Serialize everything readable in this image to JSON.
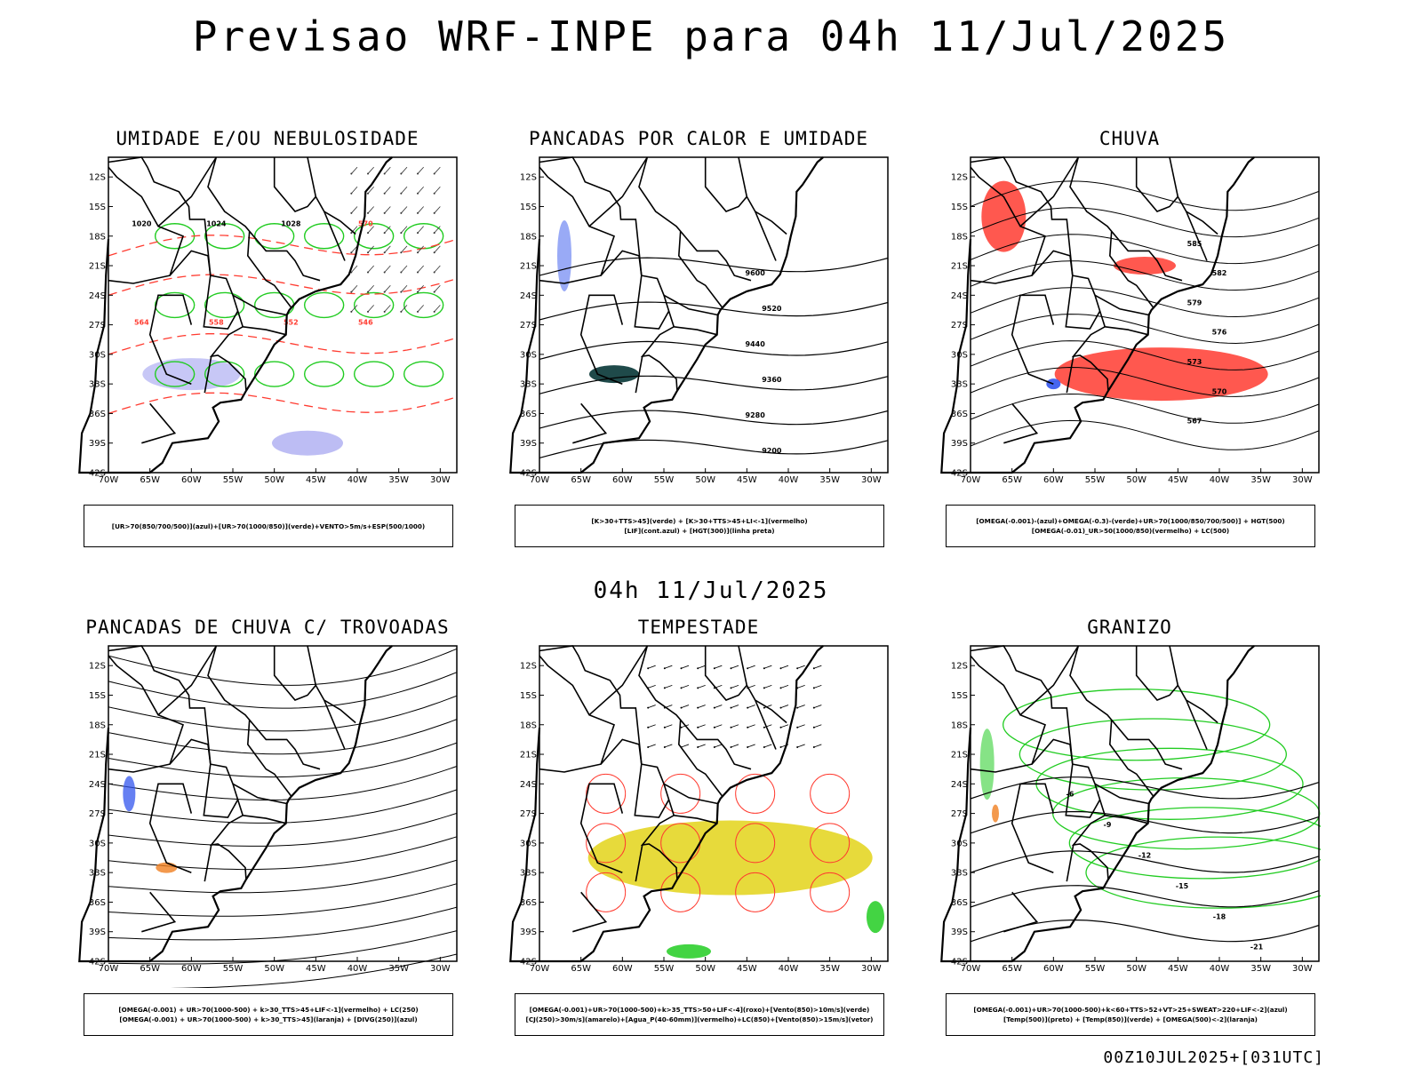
{
  "header": {
    "title": "Previsao WRF-INPE  para 04h 11/Jul/2025"
  },
  "mid_title": "04h 11/Jul/2025",
  "footer": "00Z10JUL2025+[031UTC]",
  "axes": {
    "lat_labels": [
      "12S",
      "15S",
      "18S",
      "21S",
      "24S",
      "27S",
      "30S",
      "33S",
      "36S",
      "39S",
      "42S"
    ],
    "lon_labels": [
      "70W",
      "65W",
      "60W",
      "55W",
      "50W",
      "45W",
      "40W",
      "35W",
      "30W"
    ]
  },
  "panels": [
    {
      "title": "UMIDADE E/OU NEBULOSIDADE",
      "legend": [
        "[UR>70(850/700/500)](azul)+[UR>70(1000/850)](verde)+VENTO>5m/s+ESP(500/1000)"
      ],
      "contour_labels": [
        "1020",
        "1024",
        "1028",
        "570",
        "564",
        "558",
        "552",
        "546"
      ]
    },
    {
      "title": "PANCADAS POR CALOR E UMIDADE",
      "legend": [
        "[K>30+TTS>45](verde)  +  [K>30+TTS>45+LI<-1](vermelho)",
        "[LIF](cont.azul)  +  [HGT(300)](linha preta)"
      ],
      "contour_labels": [
        "9600",
        "9520",
        "9440",
        "9360",
        "9280",
        "9200"
      ]
    },
    {
      "title": "CHUVA",
      "legend": [
        "[OMEGA(-0.001)-(azul)+OMEGA(-0.3)-(verde)+UR>70(1000/850/700/500)]  +  HGT(500)",
        "[OMEGA(-0.01)_UR>50(1000/850)(vermelho)  +  LC(500)"
      ],
      "contour_labels": [
        "585",
        "582",
        "579",
        "576",
        "573",
        "570",
        "567"
      ]
    },
    {
      "title": "PANCADAS DE CHUVA C/ TROVOADAS",
      "legend": [
        "[OMEGA(-0.001)  +  UR>70(1000-500)  +  k>30_TTS>45+LIF<-1](vermelho)  +  LC(250)",
        "[OMEGA(-0.001)  +  UR>70(1000-500)  +  k>30_TTS>45](laranja)  +  [DIVG(250)](azul)"
      ],
      "contour_labels": []
    },
    {
      "title": "TEMPESTADE",
      "legend": [
        "[OMEGA(-0.001)+UR>70(1000-500)+k>35_TTS>50+LIF<-4](roxo)+[Vento(850)>10m/s](verde)",
        "[CJ(250)>30m/s](amarelo)+[Agua_P(40-60mm)](vermelho)+LC(850)+[Vento(850)>15m/s](vetor)"
      ],
      "contour_labels": []
    },
    {
      "title": "GRANIZO",
      "legend": [
        "[OMEGA(-0.001)+UR>70(1000-500)+k<60+TTS>52+VT>25+SWEAT>220+LIF<-2](azul)",
        "[Temp(500)](preto)  +  [Temp(850)](verde)  +  [OMEGA(500)<-2](laranja)"
      ],
      "contour_labels": [
        "-6",
        "-9",
        "-12",
        "-15",
        "-18",
        "-21"
      ]
    }
  ],
  "colors": {
    "coast": "#000000",
    "red": "#ff3b30",
    "green": "#22cc22",
    "blue": "#3355ee",
    "purple": "#9999ee",
    "yellow": "#e6d830",
    "teal": "#1f4a4a",
    "orange": "#f08020"
  }
}
